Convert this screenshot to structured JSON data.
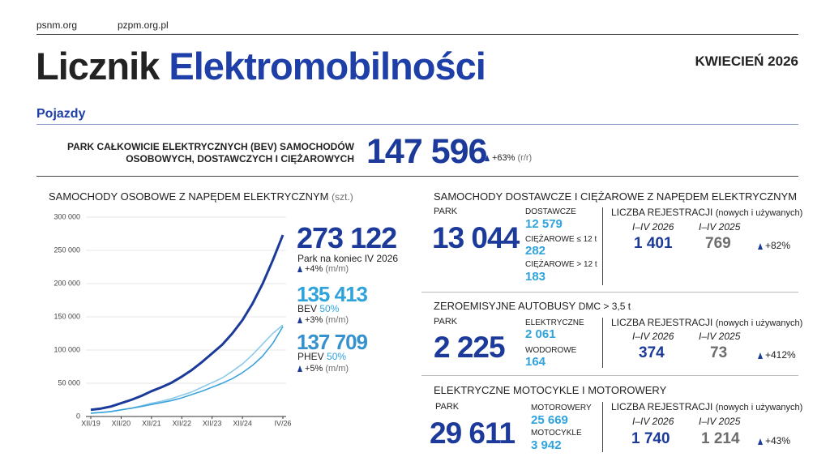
{
  "header": {
    "links": [
      "psnm.org",
      "pzpm.org.pl"
    ],
    "title_part1": "Licznik",
    "title_part2": "Elektromobilności",
    "date": "KWIECIEŃ 2026"
  },
  "section": "Pojazdy",
  "bev_park": {
    "label_line1": "PARK CAŁKOWICIE ELEKTRYCZNYCH (BEV) SAMOCHODÓW",
    "label_line2": "OSOBOWYCH, DOSTAWCZYCH I CIĘŻAROWYCH",
    "value": "147 596",
    "change": "+63%",
    "note": "(r/r)"
  },
  "cars": {
    "title": "SAMOCHODY OSOBOWE Z NAPĘDEM ELEKTRYCZNYM",
    "unit": "(szt.)",
    "total": {
      "value": "273 122",
      "label": "Park na koniec IV 2026",
      "change": "+4%",
      "note": "(m/m)"
    },
    "bev": {
      "value": "135 413",
      "label": "BEV",
      "share": "50%",
      "change": "+3%",
      "note": "(m/m)"
    },
    "phev": {
      "value": "137 709",
      "label": "PHEV",
      "share": "50%",
      "change": "+5%",
      "note": "(m/m)"
    }
  },
  "chart_data": {
    "type": "line",
    "categories": [
      "XII/19",
      null,
      null,
      "XII/20",
      null,
      null,
      "XII/21",
      null,
      null,
      "XII/22",
      null,
      null,
      "XII/23",
      null,
      null,
      "XII/24",
      null,
      null,
      null,
      "IV/26"
    ],
    "series": [
      {
        "name": "Park",
        "color": "#1b3a9a",
        "values": [
          10000,
          12000,
          15000,
          20000,
          25000,
          31000,
          38000,
          44000,
          51000,
          60000,
          70000,
          82000,
          95000,
          108000,
          125000,
          145000,
          170000,
          200000,
          235000,
          273122
        ]
      },
      {
        "name": "BEV",
        "color": "#3da3dc",
        "values": [
          5000,
          6000,
          7500,
          10000,
          12500,
          15000,
          18000,
          21000,
          24000,
          28000,
          33000,
          38000,
          44000,
          50000,
          57000,
          66000,
          77000,
          91000,
          110000,
          135413
        ]
      },
      {
        "name": "PHEV",
        "color": "#8cc9ea",
        "values": [
          5000,
          6000,
          7500,
          10000,
          12500,
          16000,
          20000,
          23000,
          27000,
          32000,
          37000,
          44000,
          51000,
          58000,
          68000,
          79000,
          93000,
          109000,
          125000,
          137709
        ]
      }
    ],
    "ylim": [
      0,
      300000
    ],
    "yticks": [
      0,
      {
        "value": 50000,
        "label": "50 000"
      },
      {
        "value": 100000,
        "label": "100 000"
      },
      {
        "value": 150000,
        "label": "150 000"
      },
      {
        "value": 200000,
        "label": "200 000"
      },
      {
        "value": 250000,
        "label": "250 000"
      },
      {
        "value": 300000,
        "label": "300 000"
      }
    ],
    "grid": true
  },
  "vans": {
    "title": "SAMOCHODY DOSTAWCZE I CIĘŻAROWE Z NAPĘDEM ELEKTRYCZNYM",
    "park_label": "PARK",
    "park": "13 044",
    "items": [
      {
        "label": "DOSTAWCZE",
        "value": "12 579"
      },
      {
        "label": "CIĘŻAROWE ≤ 12 t",
        "value": "282"
      },
      {
        "label": "CIĘŻAROWE > 12 t",
        "value": "183"
      }
    ],
    "reg": {
      "title": "LICZBA REJESTRACJI",
      "note": "(nowych i używanych)",
      "period1": "I–IV 2026",
      "value1": "1 401",
      "period2": "I–IV 2025",
      "value2": "769",
      "change": "+82%"
    }
  },
  "buses": {
    "title": "ZEROEMISYJNE AUTOBUSY",
    "title_note": "DMC > 3,5 t",
    "park_label": "PARK",
    "park": "2 225",
    "items": [
      {
        "label": "ELEKTRYCZNE",
        "value": "2 061"
      },
      {
        "label": "WODOROWE",
        "value": "164"
      }
    ],
    "reg": {
      "title": "LICZBA REJESTRACJI",
      "note": "(nowych i używanych)",
      "period1": "I–IV 2026",
      "value1": "374",
      "period2": "I–IV 2025",
      "value2": "73",
      "change": "+412%"
    }
  },
  "moto": {
    "title": "ELEKTRYCZNE MOTOCYKLE I MOTOROWERY",
    "park_label": "PARK",
    "park": "29 611",
    "items": [
      {
        "label": "MOTOROWERY",
        "value": "25 669"
      },
      {
        "label": "MOTOCYKLE",
        "value": "3 942"
      }
    ],
    "reg": {
      "title": "LICZBA REJESTRACJI",
      "note": "(nowych i używanych)",
      "period1": "I–IV 2026",
      "value1": "1 740",
      "period2": "I–IV 2025",
      "value2": "1 214",
      "change": "+43%"
    }
  }
}
